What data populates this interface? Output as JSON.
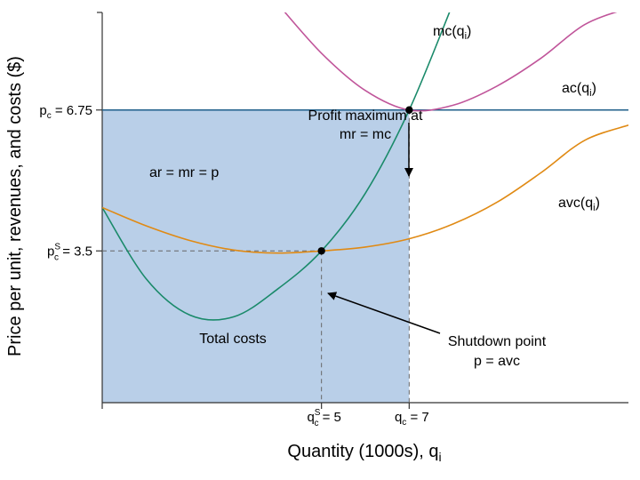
{
  "chart_data": {
    "type": "line",
    "xlabel": "Quantity (1000s), q",
    "xlabel_sub": "i",
    "ylabel": "Price per unit, revenues, and costs ($)",
    "xlim": [
      0,
      12
    ],
    "ylim": [
      0,
      9
    ],
    "grid": false,
    "colors": {
      "mc": "#1a8a6a",
      "ac": "#c0559a",
      "avc": "#e08a14",
      "price": "#1f5f8a",
      "revenue_fill": "#b9cfe8",
      "guide": "#666666",
      "axis": "#333333"
    },
    "series": [
      {
        "name": "mc",
        "sub": "i",
        "x": [
          0,
          1,
          2,
          3,
          4,
          5,
          6,
          7,
          8
        ],
        "y": [
          4.5,
          2.86,
          2.02,
          1.98,
          2.62,
          3.5,
          4.83,
          6.75,
          9.21
        ]
      },
      {
        "name": "ac",
        "sub": "i",
        "x": [
          4,
          5,
          6,
          7,
          8,
          9,
          10,
          11,
          12
        ],
        "y": [
          9.2,
          8.06,
          7.2,
          6.75,
          6.86,
          7.3,
          7.94,
          8.72,
          9.1
        ]
      },
      {
        "name": "avc",
        "sub": "i",
        "x": [
          0,
          1,
          2,
          3,
          4,
          5,
          6,
          7,
          8,
          9,
          10,
          11,
          12
        ],
        "y": [
          4.5,
          4.08,
          3.74,
          3.52,
          3.45,
          3.5,
          3.59,
          3.78,
          4.12,
          4.62,
          5.3,
          6.05,
          6.4
        ]
      }
    ],
    "price_line": {
      "label": "ar = mr = p",
      "y": 6.75
    },
    "y_ticks": [
      {
        "value": 6.75,
        "main": "p",
        "sub": "c",
        "sup": "",
        "rest": " = 6.75"
      },
      {
        "value": 3.5,
        "main": "p",
        "sub": "c",
        "sup": "S",
        "rest": " = 3.5"
      }
    ],
    "x_ticks": [
      {
        "value": 5,
        "main": "q",
        "sub": "c",
        "sup": "S",
        "rest": " = 5"
      },
      {
        "value": 7,
        "main": "q",
        "sub": "c",
        "sup": "",
        "rest": " = 7"
      }
    ],
    "points": [
      {
        "name": "profit-max",
        "x": 7,
        "y": 6.75
      },
      {
        "name": "shutdown",
        "x": 5,
        "y": 3.5
      }
    ],
    "annotations": {
      "profit_max_line1": "Profit maximum at",
      "profit_max_line2": "mr = mc",
      "shutdown_line1": "Shutdown point",
      "shutdown_line2": "p = avc",
      "total_costs": "Total costs"
    }
  }
}
